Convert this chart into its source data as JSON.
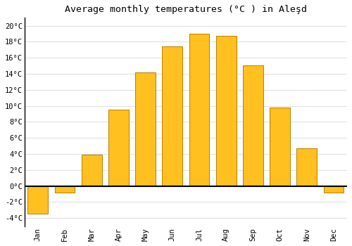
{
  "title": "Average monthly temperatures (°C ) in Aleşd",
  "months": [
    "Jan",
    "Feb",
    "Mar",
    "Apr",
    "May",
    "Jun",
    "Jul",
    "Aug",
    "Sep",
    "Oct",
    "Nov",
    "Dec"
  ],
  "values": [
    -3.5,
    -0.8,
    3.9,
    9.5,
    14.2,
    17.4,
    19.0,
    18.7,
    15.1,
    9.8,
    4.7,
    -0.8
  ],
  "bar_color": "#FFC020",
  "bar_edge_color": "#B88000",
  "background_color": "#FFFFFF",
  "grid_color": "#E0E0E0",
  "ylim": [
    -5,
    21
  ],
  "yticks": [
    -4,
    -2,
    0,
    2,
    4,
    6,
    8,
    10,
    12,
    14,
    16,
    18,
    20
  ],
  "title_fontsize": 9.5,
  "tick_fontsize": 7.5,
  "zero_line_color": "#000000",
  "bar_width": 0.75
}
